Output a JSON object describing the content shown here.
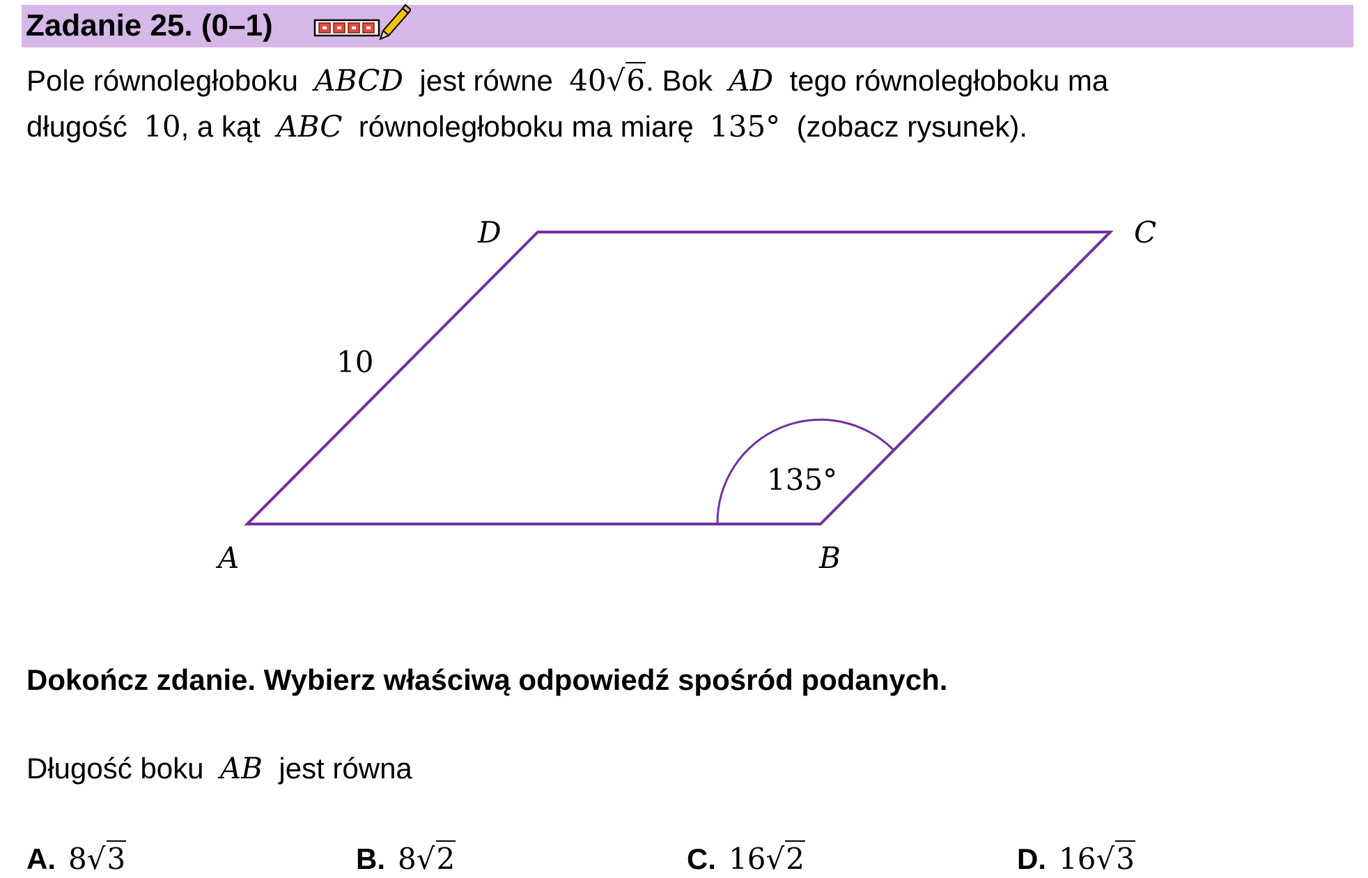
{
  "header": {
    "title": "Zadanie 25. (0–1)",
    "accent_color": "#d5b7e8",
    "icons": [
      "keyboard-icon",
      "pencil-icon"
    ]
  },
  "problem": {
    "line1": {
      "t1": "Pole równoległoboku",
      "m1": "ABCD",
      "t2": "jest równe",
      "m2_coef": "40",
      "m2_rad": "6",
      "t3": ". Bok",
      "m3": "AD",
      "t4": "tego równoległoboku ma"
    },
    "line2": {
      "t1": "długość",
      "m1": "10",
      "t2": ", a kąt",
      "m2": "ABC",
      "t3": "równoległoboku ma miarę",
      "m3": "135°",
      "t4": "(zobacz rysunek)."
    }
  },
  "figure": {
    "vertex_labels": {
      "A": "A",
      "B": "B",
      "C": "C",
      "D": "D"
    },
    "side_label": "10",
    "angle_label": "135°",
    "stroke_color": "#7030a0"
  },
  "instruction": "Dokończ zdanie. Wybierz właściwą odpowiedź spośród podanych.",
  "stem": {
    "t1": "Długość boku",
    "m1": "AB",
    "t2": "jest równa"
  },
  "options": [
    {
      "key": "A.",
      "coef": "8",
      "rad": "3"
    },
    {
      "key": "B.",
      "coef": "8",
      "rad": "2"
    },
    {
      "key": "C.",
      "coef": "16",
      "rad": "2"
    },
    {
      "key": "D.",
      "coef": "16",
      "rad": "3"
    }
  ]
}
